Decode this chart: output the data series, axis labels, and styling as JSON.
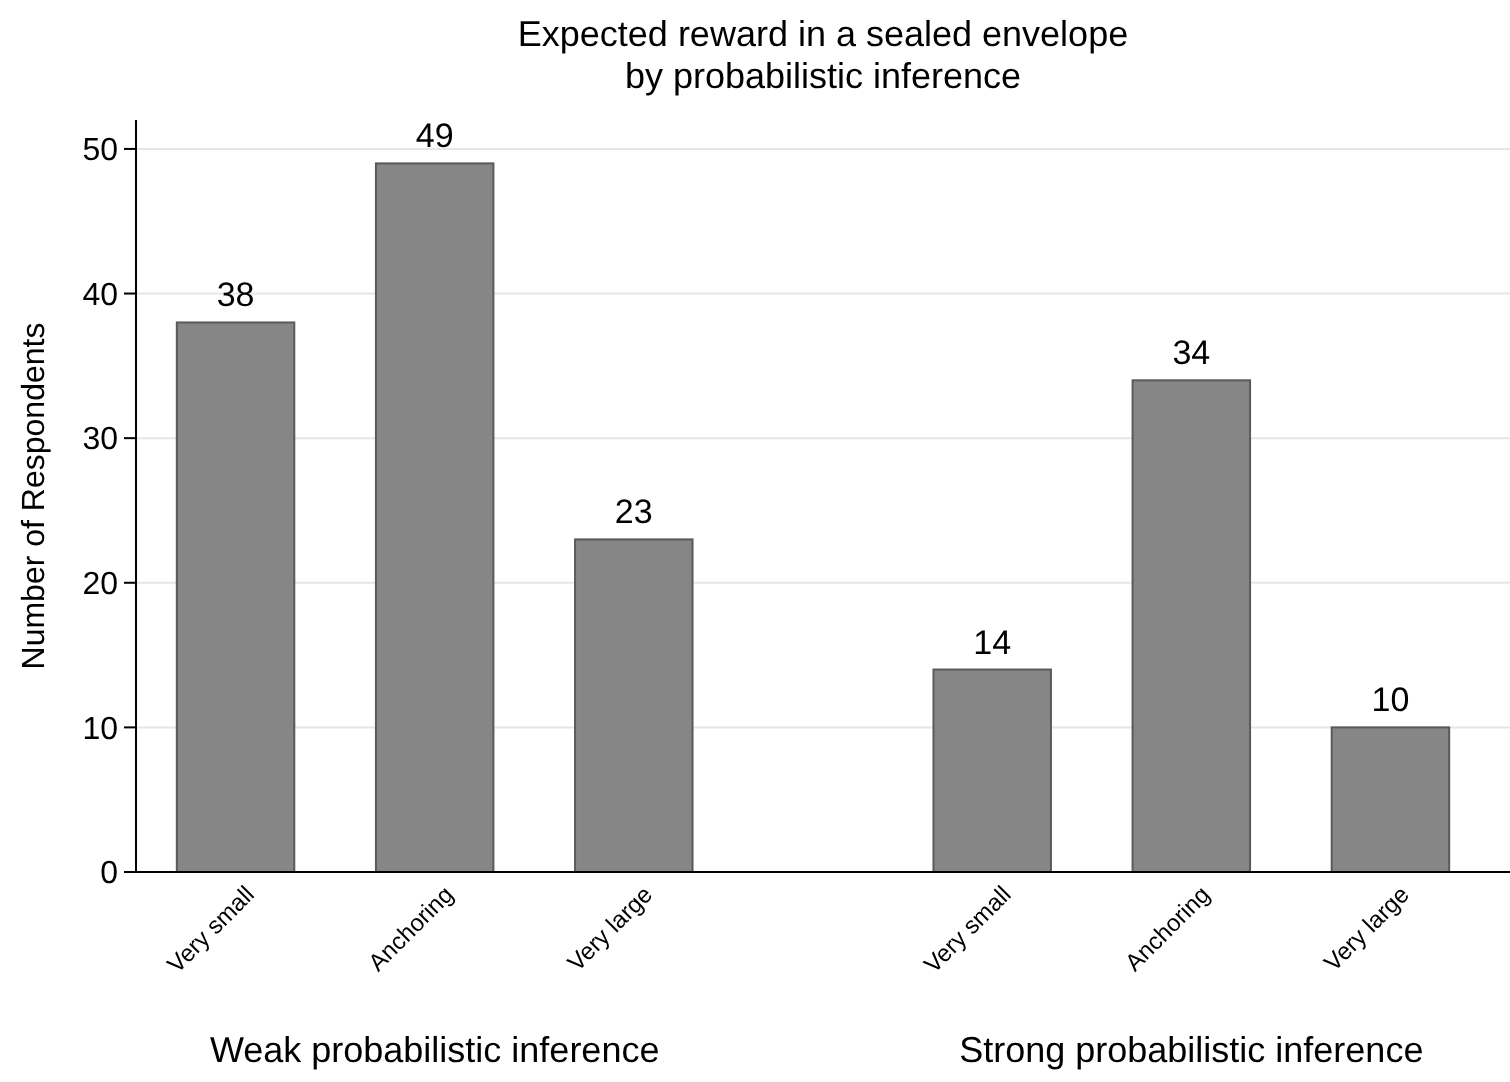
{
  "chart_data": {
    "type": "bar",
    "title": "Expected reward in a sealed envelope\nby probabilistic inference",
    "ylabel": "Number of Respondents",
    "categories": [
      "Very small",
      "Anchoring",
      "Very large",
      "Very small",
      "Anchoring",
      "Very large"
    ],
    "values": [
      38,
      49,
      23,
      14,
      34,
      10
    ],
    "color": "#868686",
    "ylim": [
      0,
      52
    ],
    "yticks": [
      0,
      10,
      20,
      30,
      40,
      50
    ],
    "grid": "y",
    "data_labels": true,
    "annotations": [
      "Weak probabilistic inference",
      "Strong probabilistic inference"
    ]
  }
}
